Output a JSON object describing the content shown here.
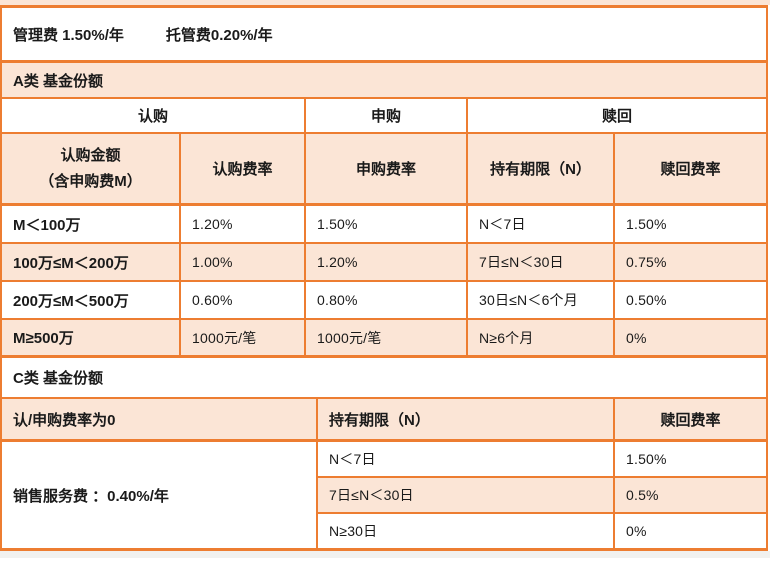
{
  "colors": {
    "border_orange": "#ED7D31",
    "fill_peach": "#FBE5D6",
    "text": "#1A1A1A",
    "outside_strip": "#F1F1EF"
  },
  "top_bar": {
    "management_fee": "管理费 1.50%/年",
    "custody_fee": "托管费0.20%/年"
  },
  "class_a": {
    "title": "A类 基金份额",
    "group_headers": {
      "subscription": "认购",
      "purchase": "申购",
      "redemption": "赎回"
    },
    "col_headers": {
      "amount_line1": "认购金额",
      "amount_line2": "（含申购费M）",
      "subscription_rate": "认购费率",
      "purchase_rate": "申购费率",
      "holding_period": "持有期限（N）",
      "redemption_rate": "赎回费率"
    },
    "rows": [
      {
        "amount": "M＜100万",
        "subscription_rate": "1.20%",
        "purchase_rate": "1.50%",
        "holding_period": "N＜7日",
        "redemption_rate": "1.50%"
      },
      {
        "amount": "100万≤M＜200万",
        "subscription_rate": "1.00%",
        "purchase_rate": "1.20%",
        "holding_period": "7日≤N＜30日",
        "redemption_rate": "0.75%"
      },
      {
        "amount": "200万≤M＜500万",
        "subscription_rate": "0.60%",
        "purchase_rate": "0.80%",
        "holding_period": "30日≤N＜6个月",
        "redemption_rate": "0.50%"
      },
      {
        "amount": "M≥500万",
        "subscription_rate": "1000元/笔",
        "purchase_rate": "1000元/笔",
        "holding_period": "N≥6个月",
        "redemption_rate": "0%"
      }
    ]
  },
  "class_c": {
    "title": "C类 基金份额",
    "headers": {
      "fee_note": "认/申购费率为0",
      "holding_period": "持有期限（N）",
      "redemption_rate": "赎回费率"
    },
    "service_fee": "销售服务费 ：0.40%/年",
    "rows": [
      {
        "holding_period": "N＜7日",
        "redemption_rate": "1.50%"
      },
      {
        "holding_period": "7日≤N＜30日",
        "redemption_rate": "0.5%"
      },
      {
        "holding_period": "N≥30日",
        "redemption_rate": "0%"
      }
    ]
  }
}
